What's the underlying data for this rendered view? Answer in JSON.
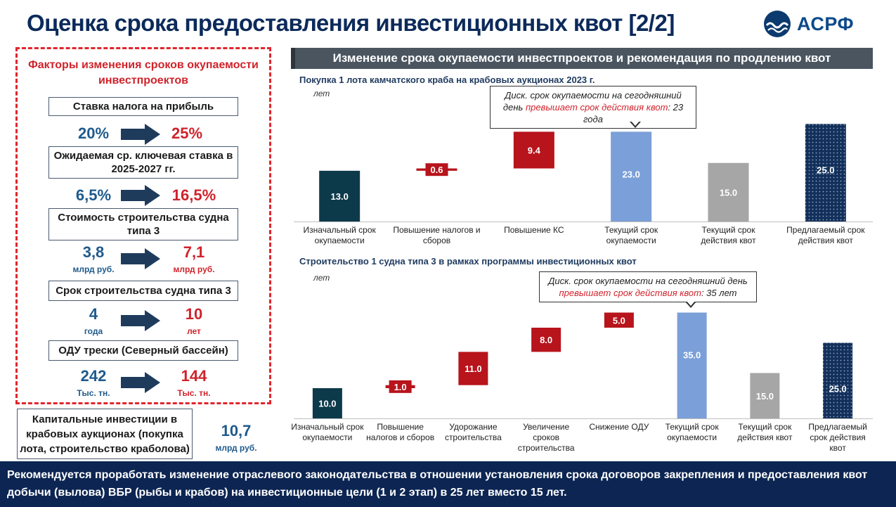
{
  "title": "Оценка срока предоставления инвестиционных квот [2/2]",
  "logo": {
    "text": "АСРФ",
    "icon": "wave-logo-icon"
  },
  "factors": {
    "title": "Факторы изменения сроков окупаемости инвестпроектов",
    "items": [
      {
        "label": "Ставка налога на прибыль",
        "old": "20%",
        "new": "25%",
        "old_unit": "",
        "new_unit": ""
      },
      {
        "label": "Ожидаемая ср. ключевая ставка в 2025-2027 гг.",
        "old": "6,5%",
        "new": "16,5%",
        "old_unit": "",
        "new_unit": ""
      },
      {
        "label": "Стоимость строительства судна типа 3",
        "old": "3,8",
        "new": "7,1",
        "old_unit": "млрд руб.",
        "new_unit": "млрд руб."
      },
      {
        "label": "Срок строительства судна типа 3",
        "old": "4",
        "new": "10",
        "old_unit": "года",
        "new_unit": "лет"
      },
      {
        "label": "ОДУ трески (Северный бассейн)",
        "old": "242",
        "new": "144",
        "old_unit": "Тыс. тн.",
        "new_unit": "Тыс. тн."
      }
    ]
  },
  "capex": {
    "label": "Капитальные инвестиции в крабовых аукционах (покупка лота, строительство краболова)",
    "value": "10,7",
    "unit": "млрд руб."
  },
  "right_header": "Изменение срока окупаемости инвестпроектов и рекомендация по продлению квот",
  "colors": {
    "navy": "#0c2552",
    "dark_teal": "#0d3a4a",
    "red": "#b7141c",
    "light_blue": "#7b9fd8",
    "gray": "#a6a6a6",
    "dotted_navy": "#13305a"
  },
  "chart_data": [
    {
      "type": "bar",
      "subtitle": "Покупка 1 лота камчатского краба на крабовых аукционах 2023 г.",
      "ylabel": "лет",
      "categories": [
        "Изначальный срок окупаемости",
        "Повышение налогов и сборов",
        "Повышение КС",
        "Текущий срок окупаемости",
        "Текущий срок действия квот",
        "Предлагаемый срок действия квот"
      ],
      "values": [
        13.0,
        0.6,
        9.4,
        23.0,
        15.0,
        25.0
      ],
      "labels": [
        "13.0",
        "0.6",
        "9.4",
        "23.0",
        "15.0",
        "25.0"
      ],
      "kind": [
        "total",
        "delta",
        "delta",
        "total",
        "total",
        "total"
      ],
      "styles": [
        "dark",
        "red",
        "red",
        "blue",
        "gray",
        "dotted"
      ],
      "callout": {
        "line1": "Диск. срок окупаемости на сегодняшний",
        "pre": "день ",
        "red": "превышает срок действия квот",
        "post": ": 23 года"
      }
    },
    {
      "type": "bar",
      "subtitle": "Строительство 1 судна типа 3 в рамках программы инвестиционных квот",
      "ylabel": "лет",
      "categories": [
        "Изначальный срок окупаемости",
        "Повышение налогов и сборов",
        "Удорожание строительства",
        "Увеличение сроков строительства",
        "Снижение ОДУ",
        "Текущий срок окупаемости",
        "Текущий срок действия квот",
        "Предлагаемый срок действия квот"
      ],
      "values": [
        10.0,
        1.0,
        11.0,
        8.0,
        5.0,
        35.0,
        15.0,
        25.0
      ],
      "labels": [
        "10.0",
        "1.0",
        "11.0",
        "8.0",
        "5.0",
        "35.0",
        "15.0",
        "25.0"
      ],
      "kind": [
        "total",
        "delta",
        "delta",
        "delta",
        "delta",
        "total",
        "total",
        "total"
      ],
      "styles": [
        "dark",
        "red",
        "red",
        "red",
        "red",
        "blue",
        "gray",
        "dotted"
      ],
      "callout": {
        "line1": "Диск. срок окупаемости на сегодняшний день",
        "pre": "",
        "red": "превышает срок действия квот",
        "post": ": 35 лет"
      }
    }
  ],
  "footer": "Рекомендуется проработать изменение отраслевого законодательства в отношении установления срока договоров закрепления и предоставления квот добычи (вылова) ВБР (рыбы и крабов) на инвестиционные цели (1 и 2 этап) в 25 лет вместо 15 лет."
}
